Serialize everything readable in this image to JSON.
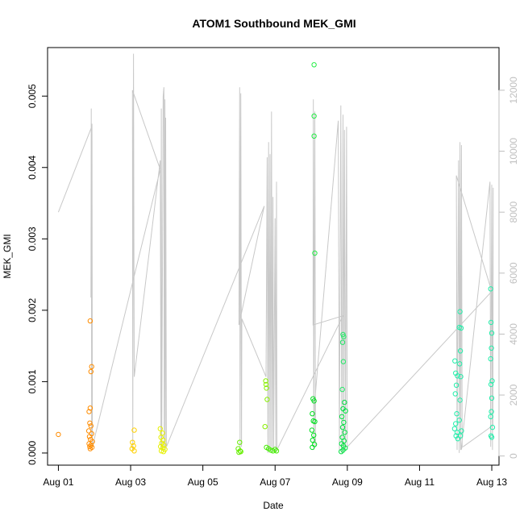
{
  "chart_data": {
    "type": "scatter",
    "title": "ATOM1 Southbound MEK_GMI",
    "xlabel": "Date",
    "ylabel": "MEK_GMI",
    "x_ticks": [
      "Aug 01",
      "Aug 03",
      "Aug 05",
      "Aug 07",
      "Aug 09",
      "Aug 11",
      "Aug 13"
    ],
    "y_ticks": [
      "0.000",
      "0.001",
      "0.002",
      "0.003",
      "0.004",
      "0.005"
    ],
    "y2_ticks": [
      "0",
      "2000",
      "4000",
      "6000",
      "8000",
      "10000",
      "12000"
    ],
    "xlim_days": [
      0.7,
      13.2
    ],
    "ylim": [
      -0.00017,
      0.00568
    ],
    "y2lim": [
      -300,
      13400
    ],
    "grid": false,
    "legend": "none",
    "colors": {
      "secondary_series": "#c8c8c8",
      "right_axis": "#bfbfbf"
    },
    "points": [
      {
        "x": 1.0,
        "y": 0.00026,
        "color": "#ff8c00"
      },
      {
        "x": 1.88,
        "y": 0.00185,
        "color": "#ff8c00"
      },
      {
        "x": 1.92,
        "y": 0.00121,
        "color": "#ff8c00"
      },
      {
        "x": 1.9,
        "y": 0.00114,
        "color": "#ff8c00"
      },
      {
        "x": 1.88,
        "y": 0.00063,
        "color": "#ff8c00"
      },
      {
        "x": 1.85,
        "y": 0.00058,
        "color": "#ff8c00"
      },
      {
        "x": 1.87,
        "y": 0.00042,
        "color": "#ff8c00"
      },
      {
        "x": 1.9,
        "y": 0.00038,
        "color": "#ff8c00"
      },
      {
        "x": 1.84,
        "y": 0.00031,
        "color": "#ff8c00"
      },
      {
        "x": 1.92,
        "y": 0.00027,
        "color": "#ff8c00"
      },
      {
        "x": 1.86,
        "y": 0.00023,
        "color": "#ff8c00"
      },
      {
        "x": 1.89,
        "y": 0.00019,
        "color": "#ff8c00"
      },
      {
        "x": 1.94,
        "y": 0.00016,
        "color": "#ff8c00"
      },
      {
        "x": 1.85,
        "y": 0.00013,
        "color": "#ff8c00"
      },
      {
        "x": 1.9,
        "y": 0.00011,
        "color": "#ff8c00"
      },
      {
        "x": 1.87,
        "y": 9e-05,
        "color": "#ff8c00"
      },
      {
        "x": 1.93,
        "y": 8e-05,
        "color": "#ff8c00"
      },
      {
        "x": 1.88,
        "y": 6e-05,
        "color": "#ff8c00"
      },
      {
        "x": 3.1,
        "y": 0.00032,
        "color": "#ffd000"
      },
      {
        "x": 3.05,
        "y": 0.00015,
        "color": "#ffd000"
      },
      {
        "x": 3.08,
        "y": 0.0001,
        "color": "#ffd000"
      },
      {
        "x": 3.04,
        "y": 6e-05,
        "color": "#ffd000"
      },
      {
        "x": 3.1,
        "y": 3e-05,
        "color": "#ffd000"
      },
      {
        "x": 3.82,
        "y": 0.00034,
        "color": "#e6f000"
      },
      {
        "x": 3.88,
        "y": 0.00028,
        "color": "#e6f000"
      },
      {
        "x": 3.84,
        "y": 0.00022,
        "color": "#e6f000"
      },
      {
        "x": 3.9,
        "y": 0.00018,
        "color": "#e6f000"
      },
      {
        "x": 3.86,
        "y": 0.00014,
        "color": "#e6f000"
      },
      {
        "x": 3.92,
        "y": 0.00011,
        "color": "#e6f000"
      },
      {
        "x": 3.83,
        "y": 9e-05,
        "color": "#e6f000"
      },
      {
        "x": 3.89,
        "y": 7e-05,
        "color": "#e6f000"
      },
      {
        "x": 3.95,
        "y": 5e-05,
        "color": "#e6f000"
      },
      {
        "x": 3.85,
        "y": 3e-05,
        "color": "#e6f000"
      },
      {
        "x": 3.91,
        "y": 2e-05,
        "color": "#e6f000"
      },
      {
        "x": 6.02,
        "y": 0.00015,
        "color": "#66ee00"
      },
      {
        "x": 5.98,
        "y": 6e-05,
        "color": "#66ee00"
      },
      {
        "x": 6.03,
        "y": 3e-05,
        "color": "#66ee00"
      },
      {
        "x": 6.0,
        "y": 1e-05,
        "color": "#66ee00"
      },
      {
        "x": 6.05,
        "y": 2e-05,
        "color": "#66ee00"
      },
      {
        "x": 6.74,
        "y": 0.00101,
        "color": "#88f000"
      },
      {
        "x": 6.75,
        "y": 0.00096,
        "color": "#88f000"
      },
      {
        "x": 6.76,
        "y": 0.00091,
        "color": "#88f000"
      },
      {
        "x": 6.78,
        "y": 0.00075,
        "color": "#88f000"
      },
      {
        "x": 6.72,
        "y": 0.00037,
        "color": "#88f000"
      },
      {
        "x": 6.76,
        "y": 8e-05,
        "color": "#44ee00"
      },
      {
        "x": 6.82,
        "y": 6e-05,
        "color": "#44ee00"
      },
      {
        "x": 6.88,
        "y": 4e-05,
        "color": "#44ee00"
      },
      {
        "x": 6.94,
        "y": 3e-05,
        "color": "#44ee00"
      },
      {
        "x": 7.0,
        "y": 5e-05,
        "color": "#44ee00"
      },
      {
        "x": 7.04,
        "y": 3e-05,
        "color": "#44ee00"
      },
      {
        "x": 8.08,
        "y": 0.00544,
        "color": "#22ee44"
      },
      {
        "x": 8.08,
        "y": 0.00472,
        "color": "#22ee44"
      },
      {
        "x": 8.08,
        "y": 0.00444,
        "color": "#22ee44"
      },
      {
        "x": 8.1,
        "y": 0.0028,
        "color": "#22ee44"
      },
      {
        "x": 8.05,
        "y": 0.00076,
        "color": "#00e020"
      },
      {
        "x": 8.08,
        "y": 0.00073,
        "color": "#00e020"
      },
      {
        "x": 8.03,
        "y": 0.00055,
        "color": "#00e020"
      },
      {
        "x": 8.06,
        "y": 0.00045,
        "color": "#00e020"
      },
      {
        "x": 8.1,
        "y": 0.00044,
        "color": "#00e020"
      },
      {
        "x": 8.02,
        "y": 0.00032,
        "color": "#00e020"
      },
      {
        "x": 8.07,
        "y": 0.00025,
        "color": "#00e020"
      },
      {
        "x": 8.04,
        "y": 0.00018,
        "color": "#00e020"
      },
      {
        "x": 8.09,
        "y": 0.00012,
        "color": "#00e020"
      },
      {
        "x": 8.03,
        "y": 8e-05,
        "color": "#00e020"
      },
      {
        "x": 8.88,
        "y": 0.00166,
        "color": "#22e866"
      },
      {
        "x": 8.9,
        "y": 0.00163,
        "color": "#22e866"
      },
      {
        "x": 8.87,
        "y": 0.00155,
        "color": "#22e866"
      },
      {
        "x": 8.89,
        "y": 0.00128,
        "color": "#22e866"
      },
      {
        "x": 8.86,
        "y": 0.00089,
        "color": "#22e866"
      },
      {
        "x": 8.92,
        "y": 0.00071,
        "color": "#00e040"
      },
      {
        "x": 8.88,
        "y": 0.00062,
        "color": "#00e040"
      },
      {
        "x": 8.95,
        "y": 0.00059,
        "color": "#00e040"
      },
      {
        "x": 8.85,
        "y": 0.00051,
        "color": "#00e040"
      },
      {
        "x": 8.9,
        "y": 0.00043,
        "color": "#00e040"
      },
      {
        "x": 8.87,
        "y": 0.00036,
        "color": "#00e040"
      },
      {
        "x": 8.93,
        "y": 0.00029,
        "color": "#00e040"
      },
      {
        "x": 8.86,
        "y": 0.00022,
        "color": "#00e040"
      },
      {
        "x": 8.91,
        "y": 0.00017,
        "color": "#00e040"
      },
      {
        "x": 8.84,
        "y": 0.00013,
        "color": "#00e040"
      },
      {
        "x": 8.89,
        "y": 0.0001,
        "color": "#00e040"
      },
      {
        "x": 8.94,
        "y": 7e-05,
        "color": "#00e040"
      },
      {
        "x": 8.88,
        "y": 4e-05,
        "color": "#00e040"
      },
      {
        "x": 8.83,
        "y": 2e-05,
        "color": "#00e040"
      },
      {
        "x": 11.98,
        "y": 0.00129,
        "color": "#22eeaa"
      },
      {
        "x": 12.0,
        "y": 0.00112,
        "color": "#22eeaa"
      },
      {
        "x": 12.05,
        "y": 0.00108,
        "color": "#22eeaa"
      },
      {
        "x": 12.02,
        "y": 0.00095,
        "color": "#22eeaa"
      },
      {
        "x": 11.99,
        "y": 0.00083,
        "color": "#22eeaa"
      },
      {
        "x": 12.03,
        "y": 0.00055,
        "color": "#22eeaa"
      },
      {
        "x": 12.0,
        "y": 0.00041,
        "color": "#22eeaa"
      },
      {
        "x": 11.97,
        "y": 0.00034,
        "color": "#22eeaa"
      },
      {
        "x": 12.04,
        "y": 0.00029,
        "color": "#22eeaa"
      },
      {
        "x": 12.01,
        "y": 0.00024,
        "color": "#22eeaa"
      },
      {
        "x": 12.06,
        "y": 0.0002,
        "color": "#22eeaa"
      },
      {
        "x": 12.12,
        "y": 0.00198,
        "color": "#22eeaa"
      },
      {
        "x": 12.1,
        "y": 0.00176,
        "color": "#22eeaa"
      },
      {
        "x": 12.15,
        "y": 0.00175,
        "color": "#22eeaa"
      },
      {
        "x": 12.13,
        "y": 0.00143,
        "color": "#22eeaa"
      },
      {
        "x": 12.11,
        "y": 0.00125,
        "color": "#22eeaa"
      },
      {
        "x": 12.14,
        "y": 0.00107,
        "color": "#22eeaa"
      },
      {
        "x": 12.12,
        "y": 0.00074,
        "color": "#22eeaa"
      },
      {
        "x": 12.1,
        "y": 0.00046,
        "color": "#22eeaa"
      },
      {
        "x": 12.16,
        "y": 0.00031,
        "color": "#22eeaa"
      },
      {
        "x": 12.13,
        "y": 0.00024,
        "color": "#22eeaa"
      },
      {
        "x": 12.97,
        "y": 0.0023,
        "color": "#22eeaa"
      },
      {
        "x": 12.98,
        "y": 0.00183,
        "color": "#22eeaa"
      },
      {
        "x": 13.0,
        "y": 0.00168,
        "color": "#22eeaa"
      },
      {
        "x": 12.99,
        "y": 0.00147,
        "color": "#22eeaa"
      },
      {
        "x": 12.97,
        "y": 0.00132,
        "color": "#22eeaa"
      },
      {
        "x": 13.01,
        "y": 0.00101,
        "color": "#22eeaa"
      },
      {
        "x": 12.98,
        "y": 0.00096,
        "color": "#22eeaa"
      },
      {
        "x": 13.0,
        "y": 0.00077,
        "color": "#22eeaa"
      },
      {
        "x": 12.99,
        "y": 0.00058,
        "color": "#22eeaa"
      },
      {
        "x": 12.97,
        "y": 0.00051,
        "color": "#22eeaa"
      },
      {
        "x": 13.02,
        "y": 0.00036,
        "color": "#22eeaa"
      },
      {
        "x": 12.98,
        "y": 0.00024,
        "color": "#22eeaa"
      },
      {
        "x": 13.0,
        "y": 0.00022,
        "color": "#22eeaa"
      }
    ],
    "secondary_line": [
      [
        1.0,
        8000
      ],
      [
        1.92,
        10800
      ],
      [
        1.9,
        5200
      ],
      [
        1.91,
        11400
      ],
      [
        1.92,
        600
      ],
      [
        1.93,
        10900
      ],
      [
        1.94,
        300
      ],
      [
        3.82,
        9400
      ],
      [
        3.05,
        12000
      ],
      [
        3.06,
        200
      ],
      [
        3.08,
        13200
      ],
      [
        3.1,
        2600
      ],
      [
        3.82,
        9700
      ],
      [
        3.84,
        300
      ],
      [
        3.85,
        11400
      ],
      [
        3.86,
        200
      ],
      [
        3.9,
        11800
      ],
      [
        3.92,
        12100
      ],
      [
        3.93,
        300
      ],
      [
        3.95,
        11700
      ],
      [
        3.96,
        200
      ],
      [
        3.97,
        11100
      ],
      [
        3.99,
        300
      ],
      [
        6.7,
        8200
      ],
      [
        6.0,
        4300
      ],
      [
        6.02,
        12100
      ],
      [
        6.03,
        200
      ],
      [
        6.05,
        11900
      ],
      [
        6.07,
        300
      ],
      [
        6.08,
        4500
      ],
      [
        6.75,
        2600
      ],
      [
        6.78,
        9800
      ],
      [
        6.8,
        100
      ],
      [
        6.82,
        10300
      ],
      [
        6.84,
        200
      ],
      [
        6.86,
        9900
      ],
      [
        6.88,
        300
      ],
      [
        6.9,
        11300
      ],
      [
        6.92,
        100
      ],
      [
        6.94,
        8500
      ],
      [
        6.96,
        200
      ],
      [
        7.0,
        7800
      ],
      [
        7.02,
        100
      ],
      [
        7.04,
        9000
      ],
      [
        7.05,
        200
      ],
      [
        8.88,
        4600
      ],
      [
        8.05,
        4300
      ],
      [
        8.06,
        11700
      ],
      [
        8.07,
        200
      ],
      [
        8.1,
        11300
      ],
      [
        8.12,
        300
      ],
      [
        8.1,
        1800
      ],
      [
        8.75,
        11000
      ],
      [
        8.78,
        200
      ],
      [
        8.82,
        11500
      ],
      [
        8.85,
        100
      ],
      [
        8.88,
        11200
      ],
      [
        8.9,
        300
      ],
      [
        8.92,
        10700
      ],
      [
        8.95,
        200
      ],
      [
        8.98,
        10800
      ],
      [
        9.0,
        300
      ],
      [
        13.0,
        5400
      ],
      [
        12.02,
        9200
      ],
      [
        12.04,
        200
      ],
      [
        12.08,
        9700
      ],
      [
        12.1,
        100
      ],
      [
        12.12,
        10300
      ],
      [
        12.14,
        200
      ],
      [
        12.16,
        10200
      ],
      [
        12.18,
        300
      ],
      [
        12.15,
        200
      ],
      [
        12.95,
        9000
      ],
      [
        12.97,
        300
      ],
      [
        13.0,
        8900
      ],
      [
        13.02,
        200
      ],
      [
        13.04,
        8800
      ],
      [
        13.03,
        1000
      ],
      [
        12.2,
        300
      ]
    ]
  }
}
